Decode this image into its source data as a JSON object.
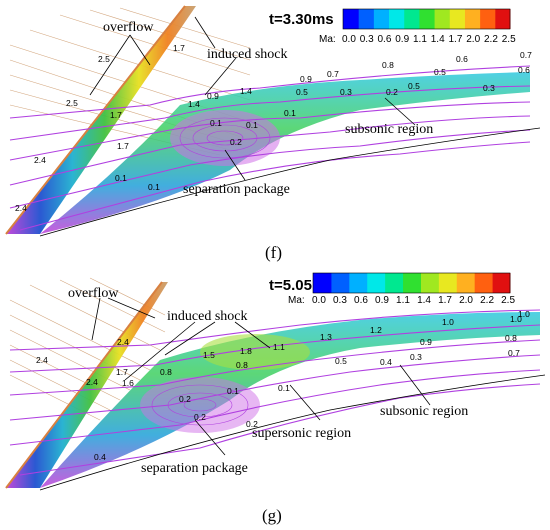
{
  "colors": {
    "streamline": "#b040e0",
    "leader": "#000000",
    "ramp_tan": "#c8a070",
    "ramp_orange": "#f08020",
    "ramp_yellow": "#e8e020",
    "ramp_green": "#40c040",
    "ramp_cyan": "#20b0d0",
    "ramp_blue": "#2050d0",
    "ramp_magenta": "#c040d8"
  },
  "legend": {
    "ma_label": "Ma:",
    "colors": [
      "#0000ff",
      "#0060ff",
      "#00b0ff",
      "#00e8e8",
      "#00e890",
      "#30e030",
      "#a0e820",
      "#e8e820",
      "#ffb020",
      "#ff6010",
      "#e01010"
    ],
    "ticks": [
      "0.0",
      "0.3",
      "0.6",
      "0.9",
      "1.1",
      "1.4",
      "1.7",
      "2.0",
      "2.2",
      "2.5"
    ]
  },
  "panels": [
    {
      "id": "f",
      "caption": "(f)",
      "time": "t=3.30ms",
      "annotations": [
        "overflow",
        "induced shock",
        "subsonic  region",
        "separation package"
      ],
      "contour_labels": [
        "2.5",
        "1.7",
        "2.5",
        "1.7",
        "2.4",
        "1.7",
        "0.1",
        "2.4",
        "1.4",
        "0.9",
        "1.4",
        "0.9",
        "0.7",
        "0.8",
        "0.6",
        "0.7",
        "0.5",
        "0.6",
        "0.3",
        "0.5",
        "0.3",
        "0.2",
        "0.5",
        "0.1",
        "0.1",
        "0.2",
        "0.1",
        "0.1"
      ]
    },
    {
      "id": "g",
      "caption": "(g)",
      "time": "t=5.05ms",
      "annotations": [
        "overflow",
        "induced shock",
        "subsonic  region",
        "supersonic  region",
        "separation package"
      ],
      "contour_labels": [
        "2.4",
        "1.7",
        "2.4",
        "2.4",
        "1.6",
        "0.8",
        "1.5",
        "1.8",
        "1.1",
        "1.3",
        "1.2",
        "1.0",
        "1.0",
        "0.9",
        "0.8",
        "0.8",
        "0.7",
        "0.5",
        "0.4",
        "0.3",
        "0.2",
        "0.2",
        "0.1",
        "0.4",
        "0.1",
        "0.2",
        "1.0"
      ]
    }
  ]
}
